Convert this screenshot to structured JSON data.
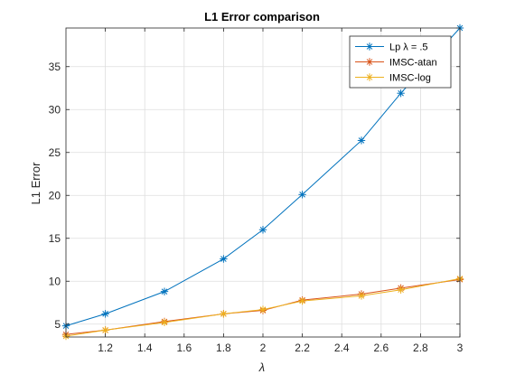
{
  "chart_data": {
    "type": "line",
    "title": "L1 Error comparison",
    "xlabel": "λ",
    "ylabel": "L1 Error",
    "xlim": [
      1.0,
      3.0
    ],
    "ylim": [
      3.5,
      39.5
    ],
    "x_ticks": [
      1.2,
      1.4,
      1.6,
      1.8,
      2.0,
      2.2,
      2.4,
      2.6,
      2.8,
      3.0
    ],
    "x_tick_labels": [
      "1.2",
      "1.4",
      "1.6",
      "1.8",
      "2",
      "2.2",
      "2.4",
      "2.6",
      "2.8",
      "3"
    ],
    "y_ticks": [
      5,
      10,
      15,
      20,
      25,
      30,
      35
    ],
    "y_tick_labels": [
      "5",
      "10",
      "15",
      "20",
      "25",
      "30",
      "35"
    ],
    "grid": true,
    "legend_position": "top-right",
    "series": [
      {
        "name": "Lp λ = .5",
        "color": "#0072BD",
        "marker": "asterisk",
        "x": [
          1.0,
          1.2,
          1.5,
          1.8,
          2.0,
          2.2,
          2.5,
          2.7,
          3.0
        ],
        "y": [
          4.8,
          6.2,
          8.8,
          12.6,
          16.0,
          20.1,
          26.4,
          31.9,
          39.5
        ]
      },
      {
        "name": "IMSC-atan",
        "color": "#D95319",
        "marker": "asterisk",
        "x": [
          1.0,
          1.2,
          1.5,
          1.8,
          2.0,
          2.2,
          2.5,
          2.7,
          3.0
        ],
        "y": [
          3.8,
          4.3,
          5.3,
          6.2,
          6.6,
          7.8,
          8.5,
          9.2,
          10.2
        ]
      },
      {
        "name": "IMSC-log",
        "color": "#EDB120",
        "marker": "asterisk",
        "x": [
          1.0,
          1.2,
          1.5,
          1.8,
          2.0,
          2.2,
          2.5,
          2.7,
          3.0
        ],
        "y": [
          3.6,
          4.3,
          5.2,
          6.2,
          6.7,
          7.7,
          8.3,
          9.0,
          10.3
        ]
      }
    ]
  }
}
